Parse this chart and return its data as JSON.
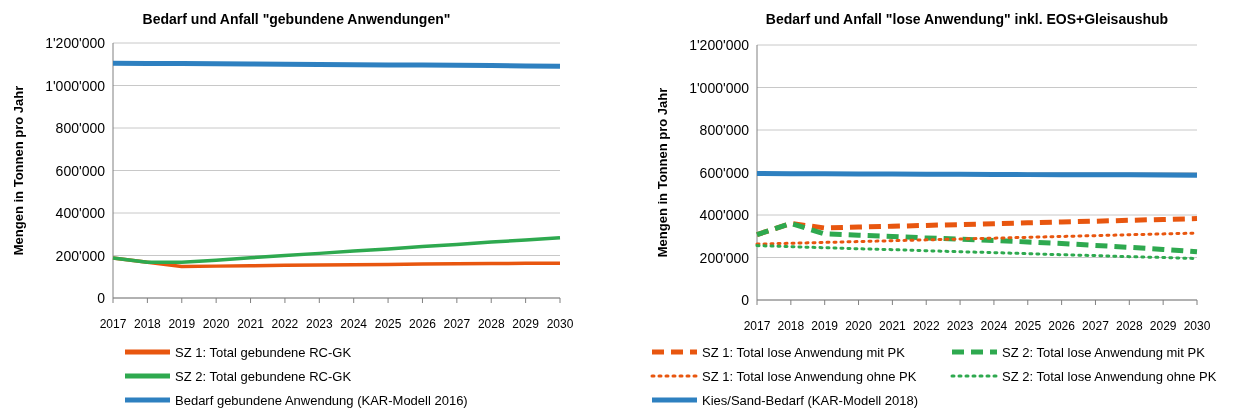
{
  "chart_data": [
    {
      "type": "line",
      "title": "Bedarf und Anfall \"gebundene Anwendungen\"",
      "ylabel": "Mengen in Tonnen pro Jahr",
      "categories": [
        "2017",
        "2018",
        "2019",
        "2020",
        "2021",
        "2022",
        "2023",
        "2024",
        "2025",
        "2026",
        "2027",
        "2028",
        "2029",
        "2030"
      ],
      "ylim": [
        0,
        1200000
      ],
      "yticks": [
        0,
        {
          "value": 200000,
          "label": "200'000"
        },
        {
          "value": 400000,
          "label": "400'000"
        },
        {
          "value": 600000,
          "label": "600'000"
        },
        {
          "value": 800000,
          "label": "800'000"
        },
        {
          "value": 1000000,
          "label": "1'000'000"
        },
        {
          "value": 1200000,
          "label": "1'200'000"
        }
      ],
      "grid": "y",
      "legend": "bottom",
      "series": [
        {
          "name": "SZ 1: Total gebundene RC-GK",
          "color": "#e8560f",
          "line_style": "solid",
          "values": [
            188000,
            168000,
            148000,
            150000,
            152000,
            154000,
            155000,
            157000,
            158000,
            160000,
            161000,
            162000,
            163000,
            164000
          ]
        },
        {
          "name": "SZ 2: Total gebundene RC-GK",
          "color": "#2ea94f",
          "line_style": "solid",
          "values": [
            188000,
            168000,
            168000,
            178000,
            189000,
            200000,
            210000,
            221000,
            231000,
            242000,
            252000,
            263000,
            273000,
            284000
          ]
        },
        {
          "name": "Bedarf gebundene Anwendung (KAR-Modell 2016)",
          "color": "#2e80c0",
          "line_style": "solid",
          "values": [
            1105000,
            1104000,
            1103000,
            1102000,
            1101000,
            1100000,
            1099000,
            1098000,
            1097000,
            1096000,
            1095000,
            1094000,
            1092000,
            1091000
          ]
        }
      ]
    },
    {
      "type": "line",
      "title": "Bedarf und Anfall \"lose Anwendung\" inkl. EOS+Gleisaushub",
      "ylabel": "Mengen in Tonnen pro Jahr",
      "categories": [
        "2017",
        "2018",
        "2019",
        "2020",
        "2021",
        "2022",
        "2023",
        "2024",
        "2025",
        "2026",
        "2027",
        "2028",
        "2029",
        "2030"
      ],
      "ylim": [
        0,
        1200000
      ],
      "yticks": [
        0,
        {
          "value": 200000,
          "label": "200'000"
        },
        {
          "value": 400000,
          "label": "400'000"
        },
        {
          "value": 600000,
          "label": "600'000"
        },
        {
          "value": 800000,
          "label": "800'000"
        },
        {
          "value": 1000000,
          "label": "1'000'000"
        },
        {
          "value": 1200000,
          "label": "1'200'000"
        }
      ],
      "grid": "y",
      "legend": "bottom",
      "series": [
        {
          "name": "SZ 1: Total lose Anwendung mit PK",
          "color": "#e8560f",
          "line_style": "dashed",
          "values": [
            308000,
            360000,
            339000,
            343000,
            347000,
            351000,
            355000,
            359000,
            363000,
            367000,
            371000,
            375000,
            379000,
            383000
          ]
        },
        {
          "name": "SZ 2: Total lose Anwendung mit PK",
          "color": "#2ea94f",
          "line_style": "dashed",
          "values": [
            308000,
            360000,
            311000,
            305000,
            299000,
            292000,
            286000,
            280000,
            273000,
            266000,
            257000,
            248000,
            238000,
            227000
          ]
        },
        {
          "name": "SZ 1: Total lose Anwendung ohne PK",
          "color": "#e8560f",
          "line_style": "dotted",
          "values": [
            263000,
            267000,
            271000,
            275000,
            279000,
            283000,
            287000,
            291000,
            295000,
            299000,
            303000,
            307000,
            311000,
            315000
          ]
        },
        {
          "name": "SZ 2: Total lose Anwendung ohne PK",
          "color": "#2ea94f",
          "line_style": "dotted",
          "values": [
            256000,
            251000,
            246000,
            241000,
            237000,
            232000,
            227000,
            223000,
            218000,
            213000,
            209000,
            204000,
            200000,
            195000
          ]
        },
        {
          "name": "Kies/Sand-Bedarf (KAR-Modell 2018)",
          "color": "#2e80c0",
          "line_style": "solid",
          "values": [
            595000,
            594000,
            594000,
            593000,
            593000,
            592000,
            592000,
            591000,
            590000,
            590000,
            589000,
            589000,
            588000,
            587000
          ]
        }
      ]
    }
  ]
}
